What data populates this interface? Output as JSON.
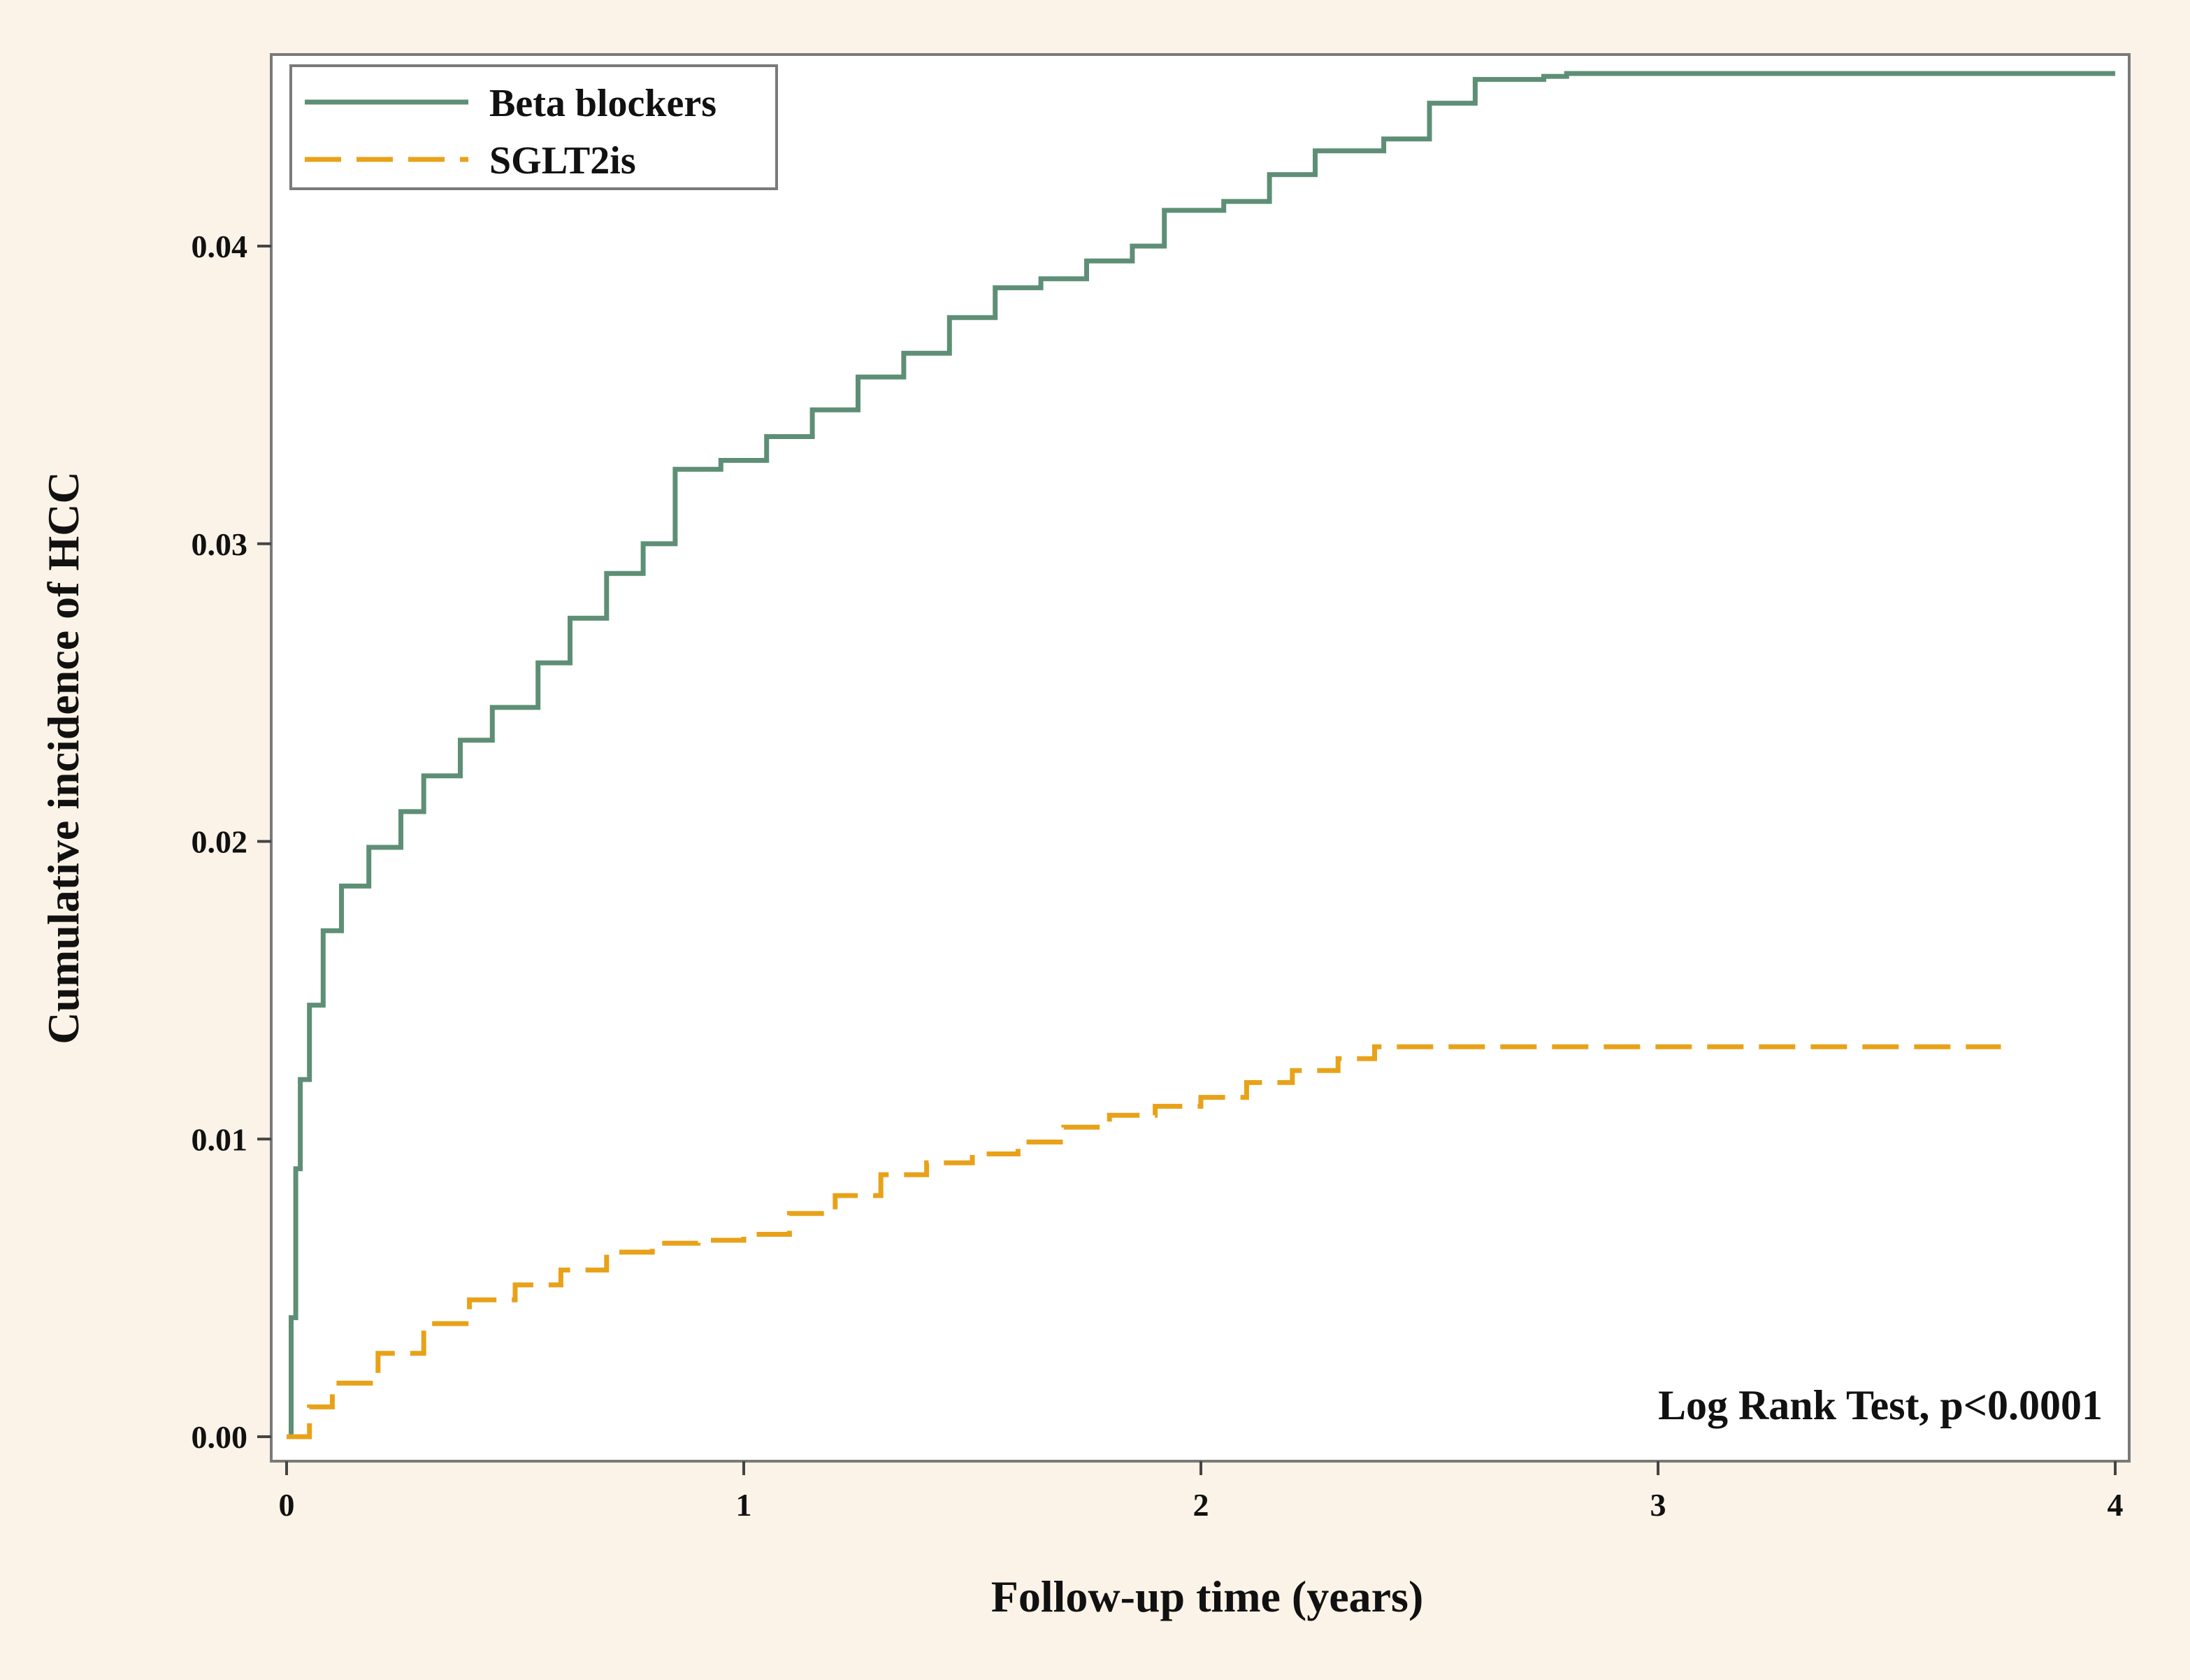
{
  "chart_data": {
    "type": "line",
    "xlabel": "Follow-up time (years)",
    "ylabel": "Cumulative incidence of HCC",
    "xlim": [
      0,
      4
    ],
    "ylim": [
      0,
      0.046
    ],
    "x_ticks": [
      0,
      1,
      2,
      3,
      4
    ],
    "x_tick_labels": [
      "0",
      "1",
      "2",
      "3",
      "4"
    ],
    "y_ticks": [
      0,
      0.01,
      0.02,
      0.03,
      0.04
    ],
    "y_tick_labels": [
      "0.00",
      "0.01",
      "0.02",
      "0.03",
      "0.04"
    ],
    "grid": false,
    "legend_position": "top-left",
    "annotation": "Log Rank Test, p<0.0001",
    "series": [
      {
        "name": "Beta blockers",
        "color": "#5e8f76",
        "style": "solid",
        "points": [
          [
            0,
            0
          ],
          [
            0.01,
            0.004
          ],
          [
            0.02,
            0.009
          ],
          [
            0.03,
            0.012
          ],
          [
            0.05,
            0.0145
          ],
          [
            0.08,
            0.017
          ],
          [
            0.12,
            0.0185
          ],
          [
            0.18,
            0.0198
          ],
          [
            0.25,
            0.021
          ],
          [
            0.3,
            0.0222
          ],
          [
            0.38,
            0.0234
          ],
          [
            0.45,
            0.0245
          ],
          [
            0.55,
            0.026
          ],
          [
            0.62,
            0.0275
          ],
          [
            0.7,
            0.029
          ],
          [
            0.78,
            0.03
          ],
          [
            0.85,
            0.0325
          ],
          [
            0.95,
            0.0328
          ],
          [
            1.05,
            0.0336
          ],
          [
            1.15,
            0.0345
          ],
          [
            1.25,
            0.0356
          ],
          [
            1.35,
            0.0364
          ],
          [
            1.45,
            0.0376
          ],
          [
            1.55,
            0.0386
          ],
          [
            1.65,
            0.0389
          ],
          [
            1.75,
            0.0395
          ],
          [
            1.85,
            0.04
          ],
          [
            1.92,
            0.0412
          ],
          [
            2.05,
            0.0415
          ],
          [
            2.15,
            0.0424
          ],
          [
            2.25,
            0.0432
          ],
          [
            2.4,
            0.0436
          ],
          [
            2.5,
            0.0448
          ],
          [
            2.6,
            0.0456
          ],
          [
            2.75,
            0.0457
          ],
          [
            2.8,
            0.0458
          ],
          [
            4.0,
            0.0458
          ]
        ]
      },
      {
        "name": "SGLT2is",
        "color": "#e8a219",
        "style": "dashed",
        "points": [
          [
            0,
            0
          ],
          [
            0.05,
            0.001
          ],
          [
            0.1,
            0.0018
          ],
          [
            0.2,
            0.0028
          ],
          [
            0.3,
            0.0038
          ],
          [
            0.4,
            0.0046
          ],
          [
            0.5,
            0.0051
          ],
          [
            0.6,
            0.0056
          ],
          [
            0.7,
            0.0062
          ],
          [
            0.8,
            0.0065
          ],
          [
            0.9,
            0.0066
          ],
          [
            1.0,
            0.0068
          ],
          [
            1.1,
            0.0075
          ],
          [
            1.2,
            0.0081
          ],
          [
            1.3,
            0.0088
          ],
          [
            1.4,
            0.0092
          ],
          [
            1.5,
            0.0095
          ],
          [
            1.6,
            0.0099
          ],
          [
            1.7,
            0.0104
          ],
          [
            1.8,
            0.0108
          ],
          [
            1.9,
            0.0111
          ],
          [
            2.0,
            0.0114
          ],
          [
            2.1,
            0.0119
          ],
          [
            2.2,
            0.0123
          ],
          [
            2.3,
            0.0127
          ],
          [
            2.38,
            0.0131
          ],
          [
            3.75,
            0.0131
          ]
        ]
      }
    ]
  }
}
